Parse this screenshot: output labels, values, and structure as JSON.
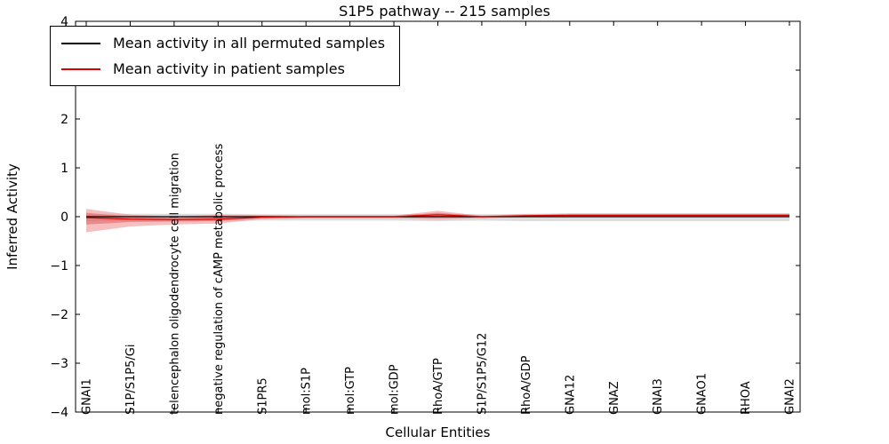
{
  "chart_data": {
    "type": "line",
    "title": "S1P5 pathway -- 215 samples",
    "xlabel": "Cellular Entities",
    "ylabel": "Inferred Activity",
    "ylim": [
      -4,
      4
    ],
    "yticks": [
      -4,
      -3,
      -2,
      -1,
      0,
      1,
      2,
      3,
      4
    ],
    "grid": false,
    "legend_position": "upper left",
    "reference_line_y": 0,
    "categories": [
      "GNAI1",
      "S1P/S1P5/Gi",
      "telencephalon oligodendrocyte cell migration",
      "negative regulation of cAMP metabolic process",
      "S1PR5",
      "mol:S1P",
      "mol:GTP",
      "mol:GDP",
      "RhoA/GTP",
      "S1P/S1P5/G12",
      "RhoA/GDP",
      "GNA12",
      "GNAZ",
      "GNAI3",
      "GNAO1",
      "RHOA",
      "GNAI2"
    ],
    "series": [
      {
        "name": "Mean activity in all permuted samples",
        "color": "#000000",
        "band_color": "#c0c0c0",
        "band_opacity": 0.55,
        "values": [
          0.0,
          0.0,
          0.0,
          0.0,
          0.0,
          0.0,
          0.0,
          0.0,
          0.0,
          0.0,
          0.0,
          0.0,
          0.0,
          0.0,
          0.0,
          0.0,
          0.0
        ],
        "band_upper": [
          0.06,
          0.06,
          0.06,
          0.06,
          0.05,
          0.05,
          0.05,
          0.05,
          0.06,
          0.05,
          0.06,
          0.07,
          0.07,
          0.07,
          0.07,
          0.07,
          0.07
        ],
        "band_lower": [
          -0.09,
          -0.09,
          -0.09,
          -0.09,
          -0.08,
          -0.08,
          -0.08,
          -0.08,
          -0.09,
          -0.08,
          -0.09,
          -0.09,
          -0.09,
          -0.09,
          -0.09,
          -0.09,
          -0.09
        ]
      },
      {
        "name": "Mean activity in patient samples",
        "color": "#dd0000",
        "band_color": "#ee8888",
        "band_opacity": 0.55,
        "band_inner_color": "#dd5555",
        "band_inner_opacity": 0.5,
        "values": [
          -0.02,
          -0.05,
          -0.06,
          -0.05,
          -0.01,
          0.0,
          0.0,
          0.0,
          0.04,
          0.0,
          0.02,
          0.03,
          0.03,
          0.03,
          0.03,
          0.03,
          0.03
        ],
        "band_upper": [
          0.16,
          0.04,
          0.0,
          0.04,
          0.03,
          0.02,
          0.02,
          0.02,
          0.12,
          0.02,
          0.05,
          0.06,
          0.06,
          0.06,
          0.06,
          0.06,
          0.06
        ],
        "band_lower": [
          -0.32,
          -0.2,
          -0.16,
          -0.14,
          -0.05,
          -0.03,
          -0.03,
          -0.03,
          -0.06,
          -0.03,
          -0.01,
          0.0,
          0.0,
          0.0,
          0.0,
          0.0,
          0.0
        ],
        "band_inner_upper": [
          0.08,
          0.0,
          -0.02,
          0.0,
          0.01,
          0.01,
          0.01,
          0.01,
          0.08,
          0.01,
          0.03,
          0.04,
          0.04,
          0.04,
          0.04,
          0.04,
          0.04
        ],
        "band_inner_lower": [
          -0.16,
          -0.11,
          -0.1,
          -0.09,
          -0.03,
          -0.02,
          -0.02,
          -0.02,
          -0.02,
          -0.02,
          0.0,
          0.01,
          0.01,
          0.01,
          0.01,
          0.01,
          0.01
        ]
      }
    ]
  }
}
